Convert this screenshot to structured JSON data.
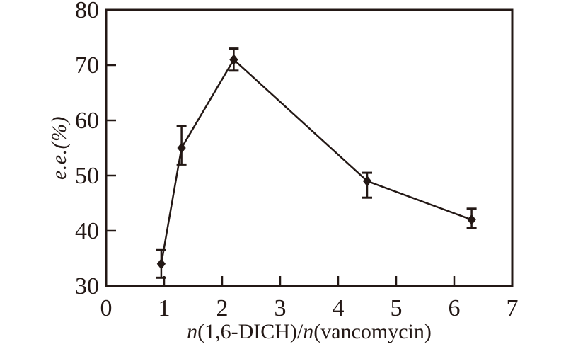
{
  "page": {
    "background": "#ffffff",
    "ink": "#231815"
  },
  "chart_data": {
    "type": "line",
    "title": "",
    "xlabel": "n(1,6-DICH)/n(vancomycin)",
    "xlabel_parts": [
      {
        "text": "n",
        "italic": true
      },
      {
        "text": "(1,6-DICH)/",
        "italic": false
      },
      {
        "text": "n",
        "italic": true
      },
      {
        "text": "(vancomycin)",
        "italic": false
      }
    ],
    "ylabel": "e.e.(%)",
    "xlim": [
      0,
      7
    ],
    "ylim": [
      30,
      80
    ],
    "x_ticks": [
      0,
      1,
      2,
      3,
      4,
      5,
      6,
      7
    ],
    "y_ticks": [
      30,
      40,
      50,
      60,
      70,
      80
    ],
    "grid": false,
    "legend": "none",
    "series": [
      {
        "name": "e.e. vs molar ratio",
        "marker": "diamond",
        "color": "#231815",
        "points": [
          {
            "x": 0.95,
            "y": 34,
            "err_top": 36.5,
            "err_bottom": 31.5
          },
          {
            "x": 1.3,
            "y": 55,
            "err_top": 59,
            "err_bottom": 52
          },
          {
            "x": 2.2,
            "y": 71,
            "err_top": 73,
            "err_bottom": 69
          },
          {
            "x": 4.5,
            "y": 49,
            "err_top": 50.5,
            "err_bottom": 46
          },
          {
            "x": 6.3,
            "y": 42,
            "err_top": 44,
            "err_bottom": 40.5
          }
        ]
      }
    ]
  }
}
